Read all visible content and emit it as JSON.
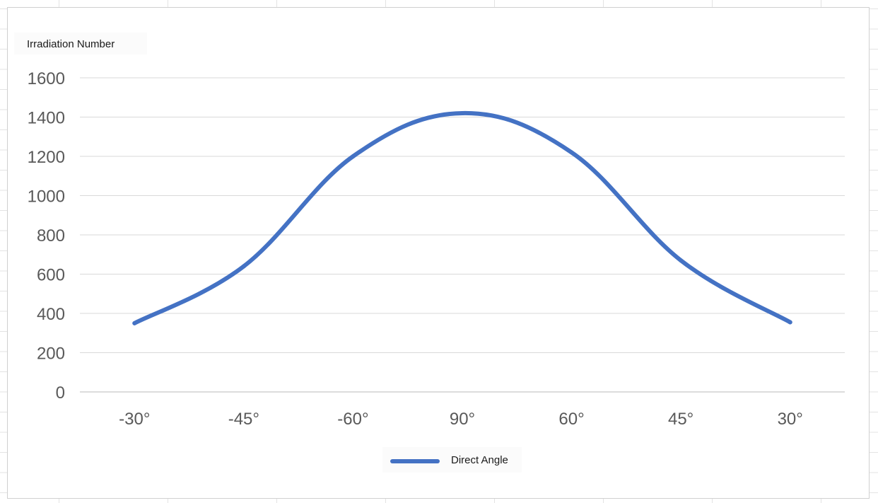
{
  "chart_data": {
    "type": "line",
    "title": "",
    "ylabel": "Irradiation Number",
    "xlabel": "",
    "categories": [
      "-30°",
      "-45°",
      "-60°",
      "90°",
      "60°",
      "45°",
      "30°"
    ],
    "series": [
      {
        "name": "Direct Angle",
        "values": [
          350,
          640,
          1200,
          1420,
          1220,
          670,
          355
        ],
        "color": "#4472c4",
        "smooth": true
      }
    ],
    "ylim": [
      0,
      1600
    ],
    "yticks": [
      0,
      200,
      400,
      600,
      800,
      1000,
      1200,
      1400,
      1600
    ],
    "grid": true,
    "legend": "bottom"
  }
}
